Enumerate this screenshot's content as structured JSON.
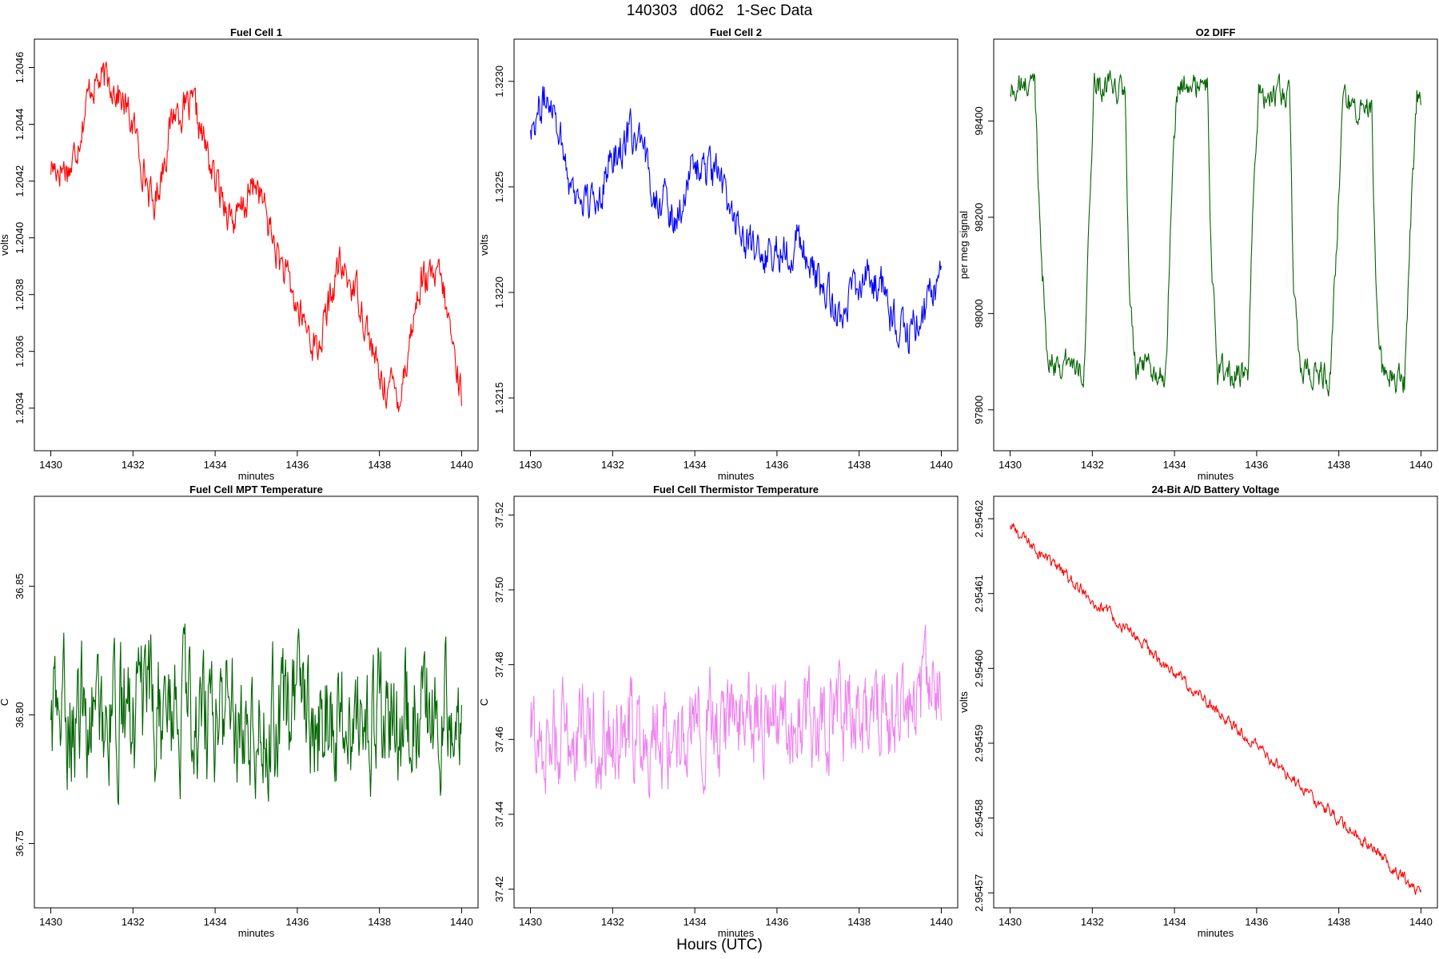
{
  "figure": {
    "title": "140303   d062   1-Sec Data",
    "xlabel": "Hours (UTC)"
  },
  "chart_data": [
    {
      "type": "line",
      "title": "Fuel Cell 1",
      "xlabel": "minutes",
      "ylabel": "volts",
      "color": "#ff0000",
      "xlim": [
        1429.6,
        1440.4
      ],
      "ylim": [
        1.20325,
        1.2047
      ],
      "xticks": [
        1430,
        1432,
        1434,
        1436,
        1438,
        1440
      ],
      "yticks": [
        "1.2034",
        "1.2036",
        "1.2038",
        "1.2040",
        "1.2042",
        "1.2044",
        "1.2046"
      ],
      "x": [
        1430.0,
        1430.5,
        1431.0,
        1431.5,
        1432.0,
        1432.5,
        1433.0,
        1433.5,
        1434.0,
        1434.5,
        1435.0,
        1435.5,
        1436.0,
        1436.5,
        1437.0,
        1437.5,
        1438.0,
        1438.5,
        1439.0,
        1439.5,
        1440.0
      ],
      "y": [
        1.20425,
        1.20425,
        1.20455,
        1.20455,
        1.2044,
        1.2041,
        1.20445,
        1.20445,
        1.2042,
        1.20405,
        1.2042,
        1.20395,
        1.20375,
        1.2036,
        1.2039,
        1.2038,
        1.2035,
        1.20345,
        1.20385,
        1.20385,
        1.20345
      ],
      "noise": 0.00012
    },
    {
      "type": "line",
      "title": "Fuel Cell 2",
      "xlabel": "minutes",
      "ylabel": "volts",
      "color": "#0000ff",
      "xlim": [
        1429.6,
        1440.4
      ],
      "ylim": [
        1.32125,
        1.3232
      ],
      "xticks": [
        1430,
        1432,
        1434,
        1436,
        1438,
        1440
      ],
      "yticks": [
        "1.3215",
        "1.3220",
        "1.3225",
        "1.3230"
      ],
      "x": [
        1430.0,
        1430.5,
        1431.0,
        1431.5,
        1432.0,
        1432.5,
        1433.0,
        1433.5,
        1434.0,
        1434.5,
        1435.0,
        1435.5,
        1436.0,
        1436.5,
        1437.0,
        1437.5,
        1438.0,
        1438.5,
        1439.0,
        1439.5,
        1440.0
      ],
      "y": [
        1.3228,
        1.32295,
        1.3225,
        1.3224,
        1.32265,
        1.32275,
        1.3225,
        1.32235,
        1.3226,
        1.32255,
        1.32235,
        1.32215,
        1.3222,
        1.32225,
        1.32205,
        1.3219,
        1.32205,
        1.32205,
        1.3218,
        1.32185,
        1.3221
      ],
      "noise": 0.00018
    },
    {
      "type": "line",
      "title": "O2 DIFF",
      "xlabel": "minutes",
      "ylabel": "per meg signal",
      "color": "#006400",
      "xlim": [
        1429.6,
        1440.4
      ],
      "ylim": [
        97715,
        98570
      ],
      "xticks": [
        1430,
        1432,
        1434,
        1436,
        1438,
        1440
      ],
      "yticks": [
        "97800",
        "98000",
        "98200",
        "98400"
      ],
      "x": [
        1430.0,
        1430.6,
        1430.7,
        1430.9,
        1431.8,
        1431.9,
        1432.05,
        1432.8,
        1432.9,
        1433.05,
        1433.8,
        1433.9,
        1434.05,
        1434.8,
        1434.9,
        1435.05,
        1435.8,
        1435.9,
        1436.05,
        1436.8,
        1436.9,
        1437.05,
        1437.8,
        1437.95,
        1438.1,
        1438.8,
        1438.9,
        1439.05,
        1439.6,
        1439.75,
        1439.9,
        1440.0
      ],
      "y": [
        98460,
        98480,
        98250,
        97900,
        97890,
        98150,
        98470,
        98460,
        98050,
        97880,
        97880,
        98200,
        98470,
        98470,
        98100,
        97880,
        97870,
        98180,
        98460,
        98450,
        98050,
        97880,
        97870,
        98150,
        98440,
        98430,
        98050,
        97880,
        97860,
        98200,
        98440,
        98450
      ],
      "noise": 55
    },
    {
      "type": "line",
      "title": "Fuel Cell MPT Temperature",
      "xlabel": "minutes",
      "ylabel": "C",
      "color": "#006400",
      "xlim": [
        1429.6,
        1440.4
      ],
      "ylim": [
        36.725,
        36.885
      ],
      "xticks": [
        1430,
        1432,
        1434,
        1436,
        1438,
        1440
      ],
      "yticks": [
        "36.75",
        "36.80",
        "36.85"
      ],
      "x": [
        1430.0,
        1440.0
      ],
      "y": [
        36.8,
        36.8
      ],
      "noise": 0.045
    },
    {
      "type": "line",
      "title": "Fuel Cell Thermistor Temperature",
      "xlabel": "minutes",
      "ylabel": "C",
      "color": "#ee82ee",
      "xlim": [
        1429.6,
        1440.4
      ],
      "ylim": [
        37.415,
        37.525
      ],
      "xticks": [
        1430,
        1432,
        1434,
        1436,
        1438,
        1440
      ],
      "yticks": [
        "37.42",
        "37.44",
        "37.46",
        "37.48",
        "37.50",
        "37.52"
      ],
      "x": [
        1430.0,
        1440.0
      ],
      "y": [
        37.46,
        37.47
      ],
      "noise": 0.024
    },
    {
      "type": "line",
      "title": "24-Bit A/D Battery Voltage",
      "xlabel": "minutes",
      "ylabel": "volts",
      "color": "#ff0000",
      "xlim": [
        1429.6,
        1440.4
      ],
      "ylim": [
        2.954568,
        2.954623
      ],
      "xticks": [
        1430,
        1432,
        1434,
        1436,
        1438,
        1440
      ],
      "yticks": [
        "2.95457",
        "2.95458",
        "2.95459",
        "2.95460",
        "2.95461",
        "2.95462"
      ],
      "x": [
        1430.0,
        1440.0
      ],
      "y": [
        2.954619,
        2.95457
      ],
      "noise": 1.5e-06
    }
  ]
}
